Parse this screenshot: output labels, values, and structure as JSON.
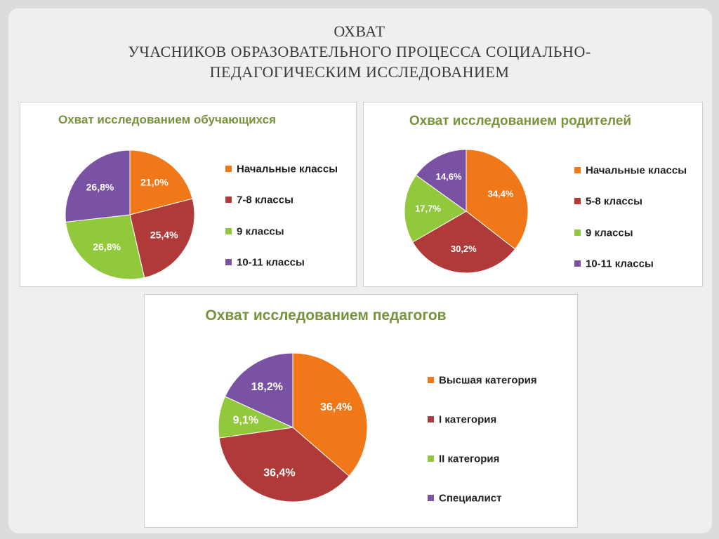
{
  "slide_title": {
    "line1": "ОХВАТ",
    "line2": "УЧАСНИКОВ ОБРАЗОВАТЕЛЬНОГО ПРОЦЕССА СОЦИАЛЬНО-",
    "line3": "ПЕДАГОГИЧЕСКИМ ИССЛЕДОВАНИЕМ"
  },
  "colors": {
    "orange": "#f07818",
    "red": "#b03a3a",
    "green": "#92c83c",
    "purple": "#7a52a4",
    "title_green": "#77933c"
  },
  "chart_data": [
    {
      "type": "pie",
      "title": "Охват исследованием  обучающихся",
      "categories": [
        "Начальные классы",
        "7-8 классы",
        "9 классы",
        "10-11 классы"
      ],
      "values": [
        21.0,
        25.4,
        26.8,
        26.8
      ],
      "labels": [
        "21,0%",
        "25,4%",
        "26,8%",
        "26,8%"
      ],
      "colors": [
        "#f07818",
        "#b03a3a",
        "#92c83c",
        "#7a52a4"
      ],
      "legend": "right"
    },
    {
      "type": "pie",
      "title": "Охват исследованием  родителей",
      "categories": [
        "Начальные классы",
        "5-8 классы",
        "9 классы",
        "10-11 классы"
      ],
      "values": [
        34.4,
        30.2,
        17.7,
        14.6
      ],
      "labels": [
        "34,4%",
        "30,2%",
        "17,7%",
        "14,6%"
      ],
      "colors": [
        "#f07818",
        "#b03a3a",
        "#92c83c",
        "#7a52a4"
      ],
      "legend": "right"
    },
    {
      "type": "pie",
      "title": "Охват исследованием  педагогов",
      "categories": [
        "Высшая категория",
        "I категория",
        "II категория",
        "Специалист"
      ],
      "values": [
        36.4,
        36.4,
        9.1,
        18.2
      ],
      "labels": [
        "36,4%",
        "36,4%",
        "9,1%",
        "18,2%"
      ],
      "colors": [
        "#f07818",
        "#b03a3a",
        "#92c83c",
        "#7a52a4"
      ],
      "legend": "right"
    }
  ]
}
